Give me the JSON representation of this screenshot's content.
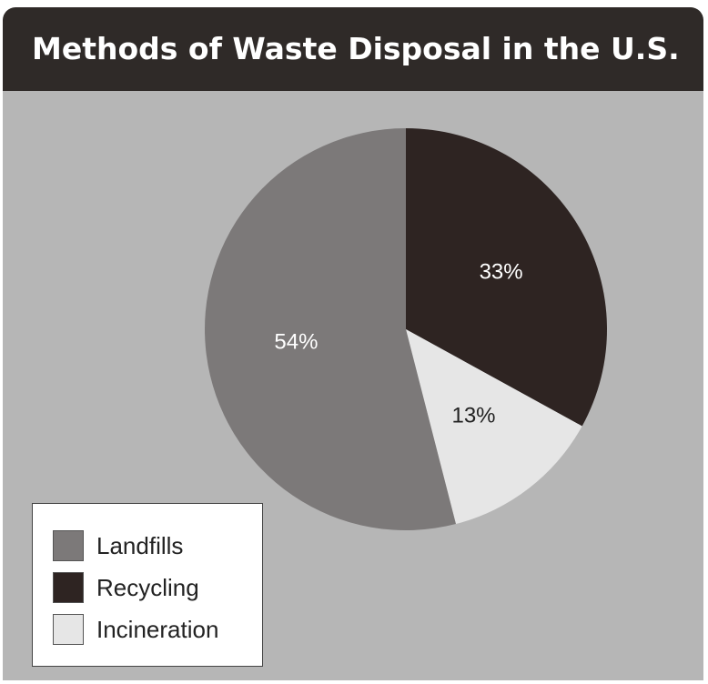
{
  "chart_data": {
    "type": "pie",
    "title": "Methods of Waste Disposal in the U.S.",
    "categories": [
      "Recycling",
      "Incineration",
      "Landfills"
    ],
    "values": [
      33,
      13,
      54
    ],
    "data_labels": [
      "33%",
      "13%",
      "54%"
    ],
    "colors": [
      "#2e2422",
      "#e6e6e6",
      "#7c7979"
    ],
    "label_colors": [
      "#ffffff",
      "#222222",
      "#ffffff"
    ],
    "start": "12 o'clock",
    "direction": "clockwise",
    "legend": {
      "placement": "bottom-left",
      "entries": [
        {
          "label": "Landfills",
          "color": "#7c7979"
        },
        {
          "label": "Recycling",
          "color": "#2e2422"
        },
        {
          "label": "Incineration",
          "color": "#e6e6e6"
        }
      ]
    }
  }
}
